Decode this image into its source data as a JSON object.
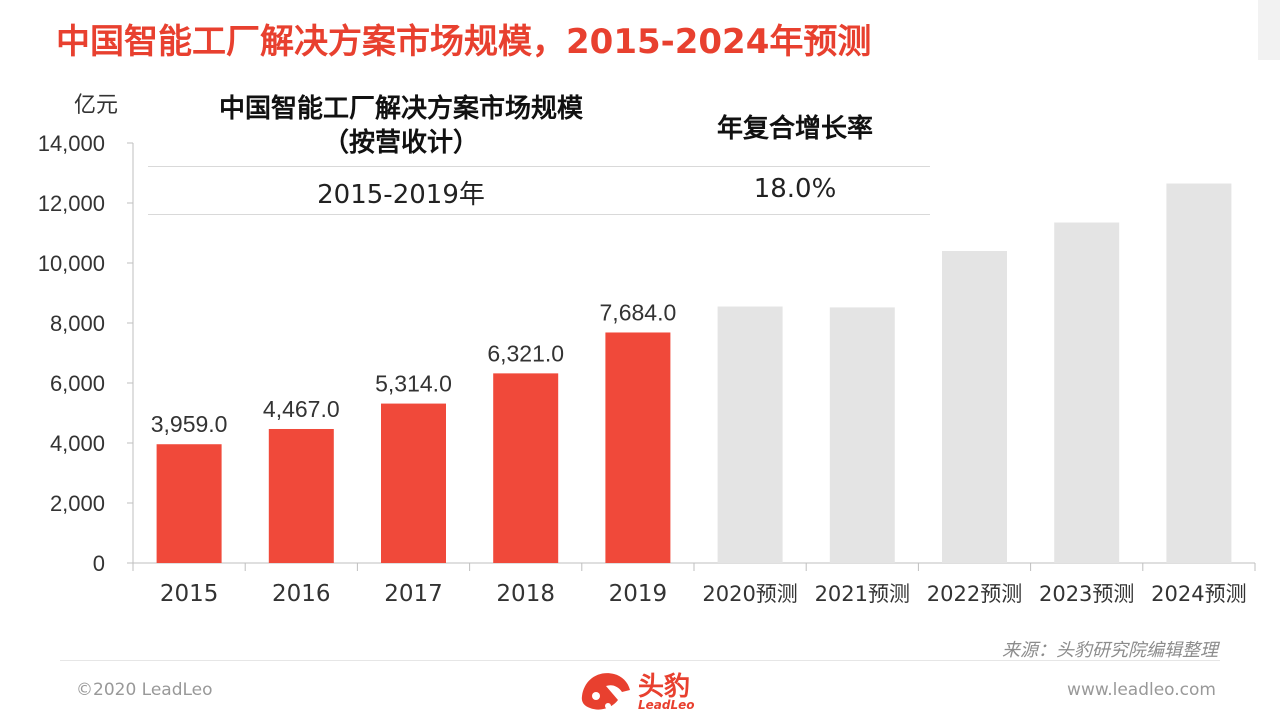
{
  "page": {
    "title": "中国智能工厂解决方案市场规模，2015-2024年预测",
    "source": "来源：头豹研究院编辑整理",
    "copyright": "©2020 LeadLeo",
    "website": "www.leadleo.com",
    "logo_cn": "头豹",
    "logo_en": "LeadLeo"
  },
  "table": {
    "col1_header_line1": "中国智能工厂解决方案市场规模",
    "col1_header_line2": "（按营收计）",
    "col2_header": "年复合增长率",
    "period": "2015-2019年",
    "cagr": "18.0%"
  },
  "colors": {
    "actual": "#f0493a",
    "forecast": "#e4e4e4",
    "title": "#e8402f",
    "axis": "#bfbfbf",
    "text": "#333333"
  },
  "chart_data": {
    "type": "bar",
    "unit_label": "亿元",
    "categories": [
      "2015",
      "2016",
      "2017",
      "2018",
      "2019",
      "2020预测",
      "2021预测",
      "2022预测",
      "2023预测",
      "2024预测"
    ],
    "values": [
      3959.0,
      4467.0,
      5314.0,
      6321.0,
      7684.0,
      8550,
      8520,
      10400,
      11350,
      12650
    ],
    "value_labels": [
      "3,959.0",
      "4,467.0",
      "5,314.0",
      "6,321.0",
      "7,684.0",
      null,
      null,
      null,
      null,
      null
    ],
    "forecast_flags": [
      false,
      false,
      false,
      false,
      false,
      true,
      true,
      true,
      true,
      true
    ],
    "ylim": [
      0,
      14000
    ],
    "yticks": [
      0,
      2000,
      4000,
      6000,
      8000,
      10000,
      12000,
      14000
    ],
    "ytick_labels": [
      "0",
      "2,000",
      "4,000",
      "6,000",
      "8,000",
      "10,000",
      "12,000",
      "14,000"
    ],
    "grid": false,
    "legend": "none"
  }
}
